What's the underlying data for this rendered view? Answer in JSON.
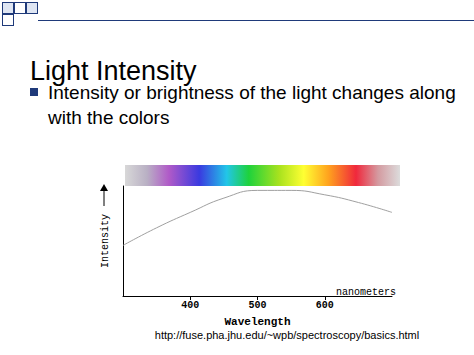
{
  "slide": {
    "title": "Light Intensity",
    "bullet": "Intensity or brightness of the light changes along with the colors",
    "source": "http://fuse.pha.jhu.edu/~wpb/spectroscopy/basics.html"
  },
  "chart_data": {
    "type": "line",
    "x_label": "Wavelength",
    "y_label": "Intensity",
    "annotation": "nanometers",
    "x": [
      300,
      350,
      400,
      450,
      500,
      550,
      600,
      650,
      700
    ],
    "values": [
      46,
      62,
      76,
      89,
      96,
      96,
      92,
      85,
      76
    ],
    "color": "#a0a0a0",
    "xlim": [
      300,
      700
    ],
    "xticks": [
      400,
      500,
      600
    ],
    "ylim": [
      0,
      100
    ],
    "yticks": [],
    "grid": false,
    "tick_labels": "x"
  }
}
